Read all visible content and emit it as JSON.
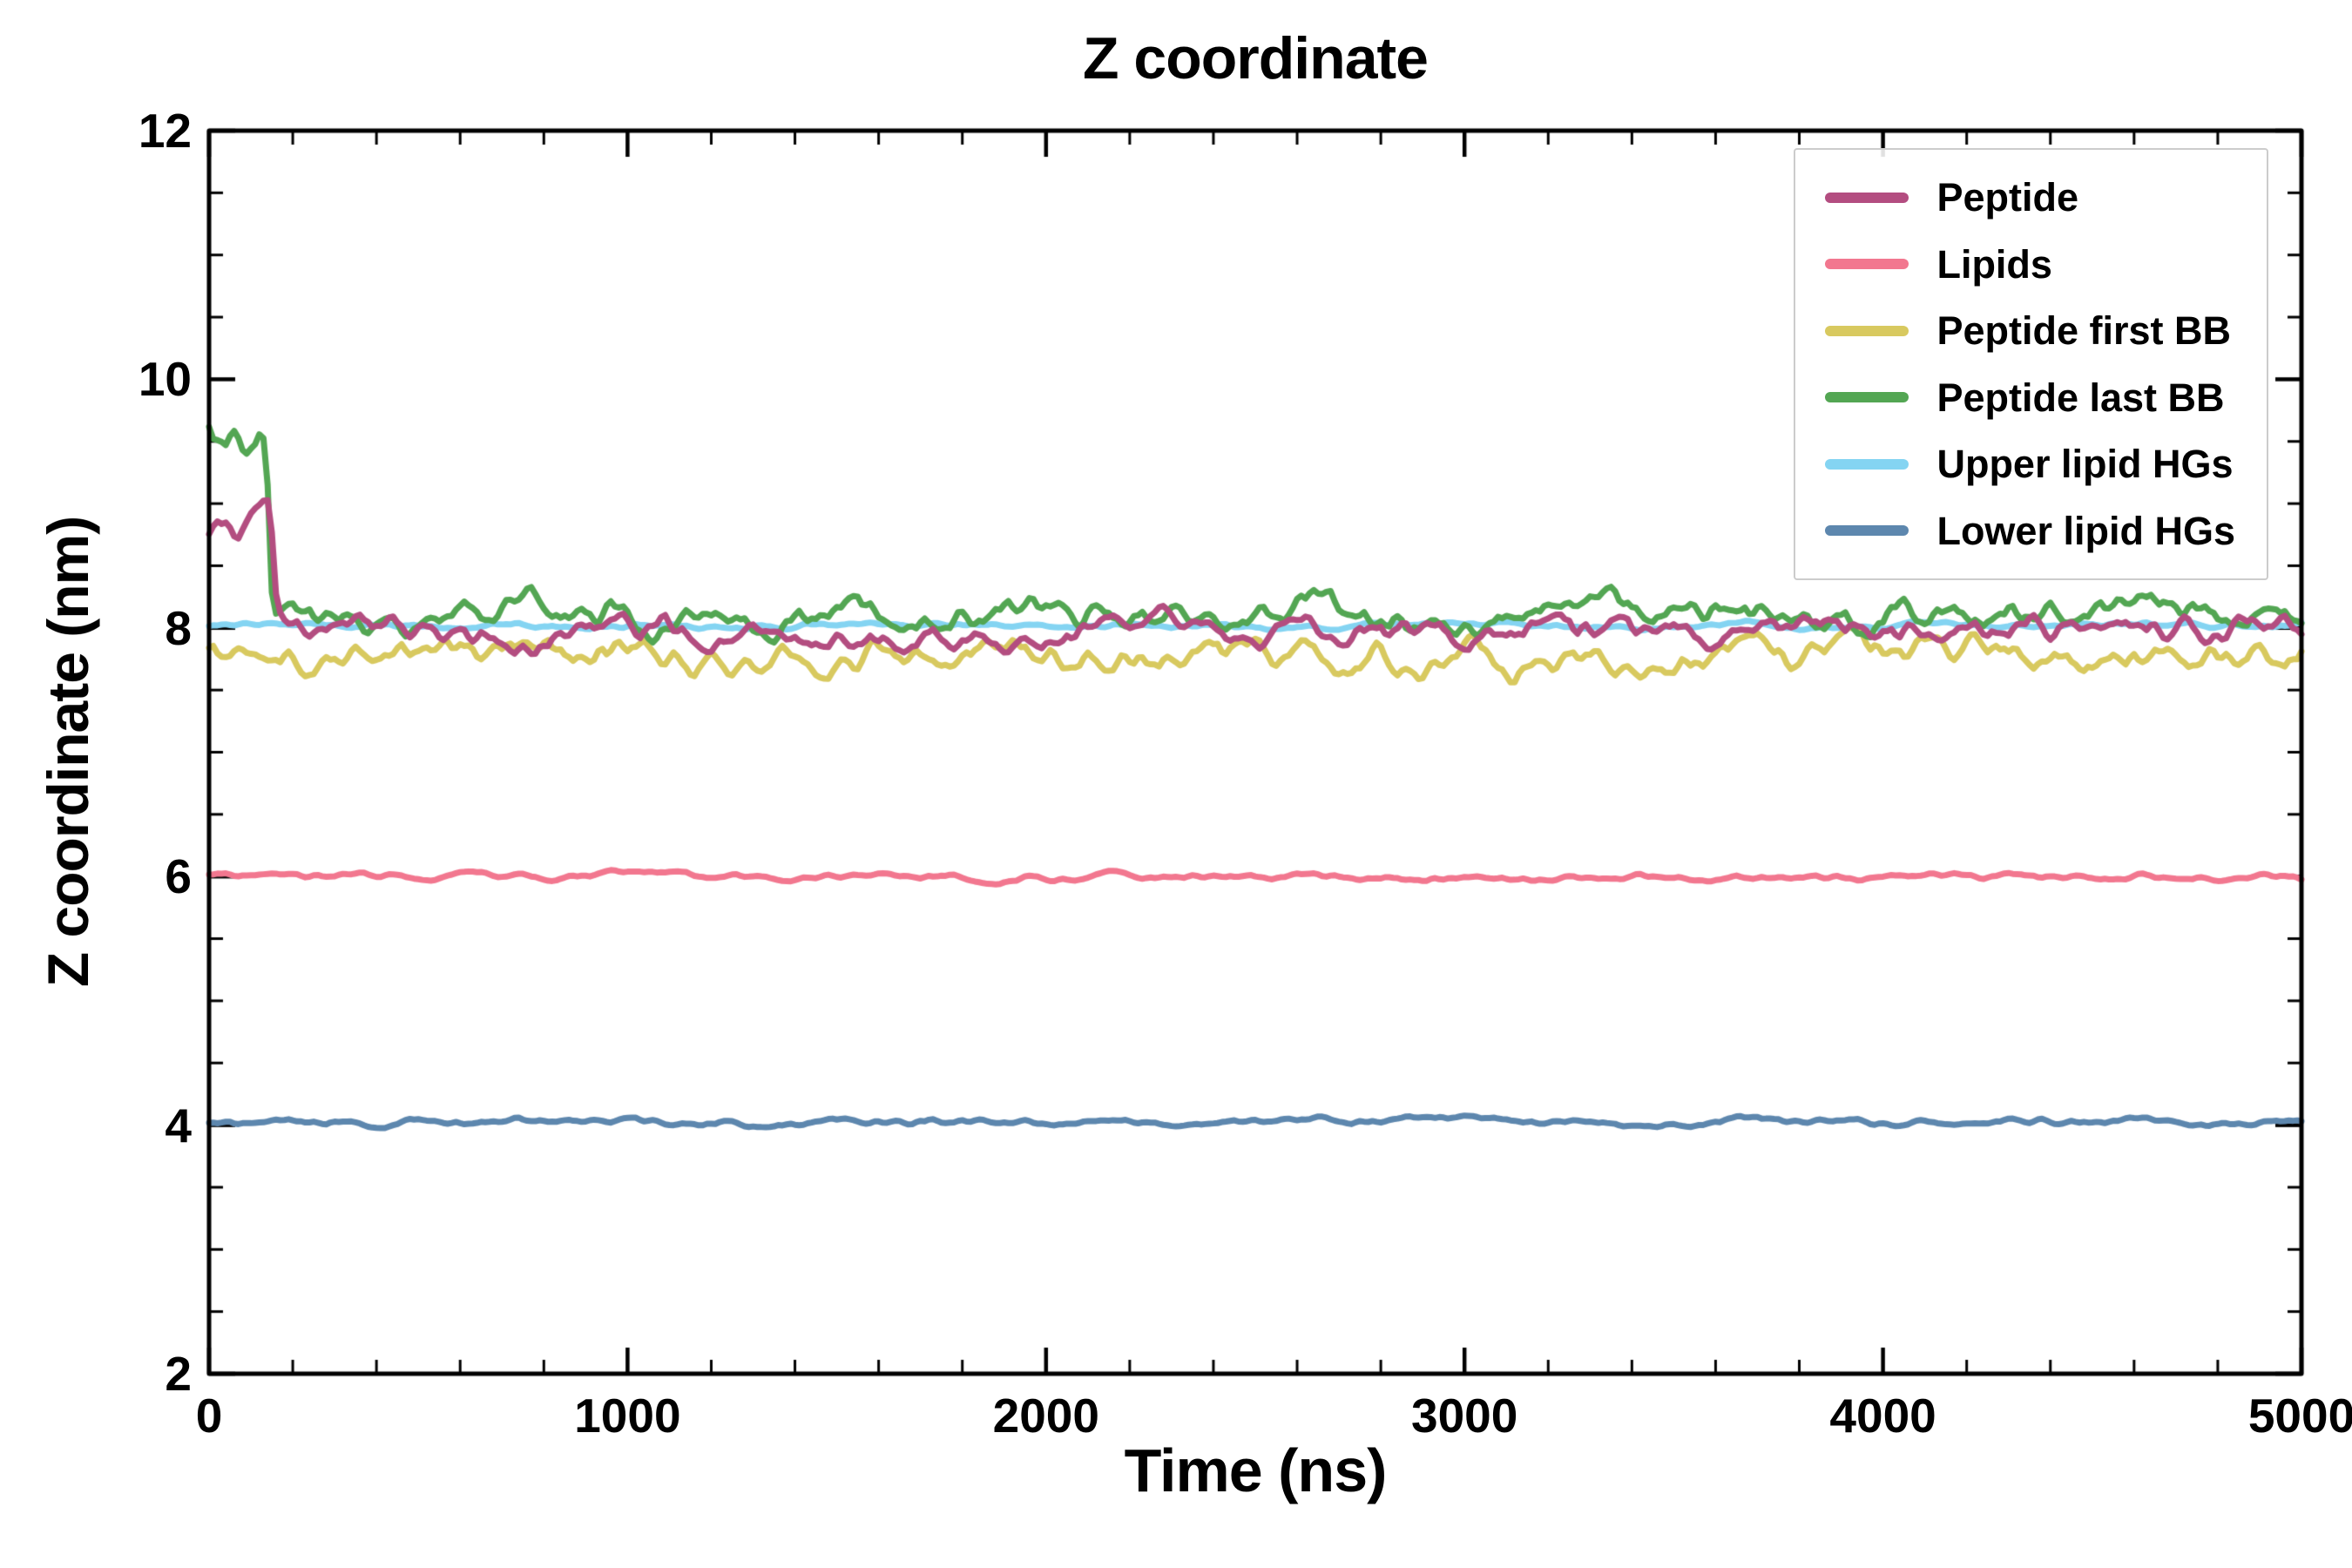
{
  "chart_data": {
    "type": "line",
    "title": "Z coordinate",
    "xlabel": "Time (ns)",
    "ylabel": "Z coordinate (nm)",
    "xlim": [
      0,
      5000
    ],
    "ylim": [
      2,
      12
    ],
    "xticks": [
      0,
      1000,
      2000,
      3000,
      4000,
      5000
    ],
    "yticks": [
      2,
      4,
      6,
      8,
      10,
      12
    ],
    "x_minor": 200,
    "x_major": 1000,
    "y_minor": 0.5,
    "y_major": 2,
    "grid": false,
    "legend_position": "upper right",
    "background_color": "#ffffff",
    "axis_color": "#000000",
    "draw_order": [
      4,
      1,
      5,
      2,
      3,
      0
    ],
    "series": [
      {
        "name": "Peptide",
        "color": "#b34d80",
        "segments": [
          {
            "x_start": 0,
            "x_end": 150,
            "level": 8.8,
            "noise": 0.1
          },
          {
            "x_start": 150,
            "x_end": 5000,
            "level": 7.97,
            "noise": 0.08
          }
        ]
      },
      {
        "name": "Lipids",
        "color": "#f2778f",
        "segments": [
          {
            "x_start": 0,
            "x_end": 5000,
            "level": 6.0,
            "noise": 0.018
          }
        ]
      },
      {
        "name": "Peptide first BB",
        "color": "#d8c95f",
        "segments": [
          {
            "x_start": 0,
            "x_end": 5000,
            "level": 7.78,
            "noise": 0.09
          }
        ]
      },
      {
        "name": "Peptide last BB",
        "color": "#53a653",
        "segments": [
          {
            "x_start": 0,
            "x_end": 140,
            "level": 9.75,
            "noise": 0.16
          },
          {
            "x_start": 140,
            "x_end": 5000,
            "level": 8.12,
            "noise": 0.09
          }
        ]
      },
      {
        "name": "Upper lipid HGs",
        "color": "#84d4f2",
        "segments": [
          {
            "x_start": 0,
            "x_end": 5000,
            "level": 8.02,
            "noise": 0.016
          }
        ]
      },
      {
        "name": "Lower lipid HGs",
        "color": "#5d87ae",
        "segments": [
          {
            "x_start": 0,
            "x_end": 5000,
            "level": 4.03,
            "noise": 0.02
          }
        ]
      }
    ]
  }
}
